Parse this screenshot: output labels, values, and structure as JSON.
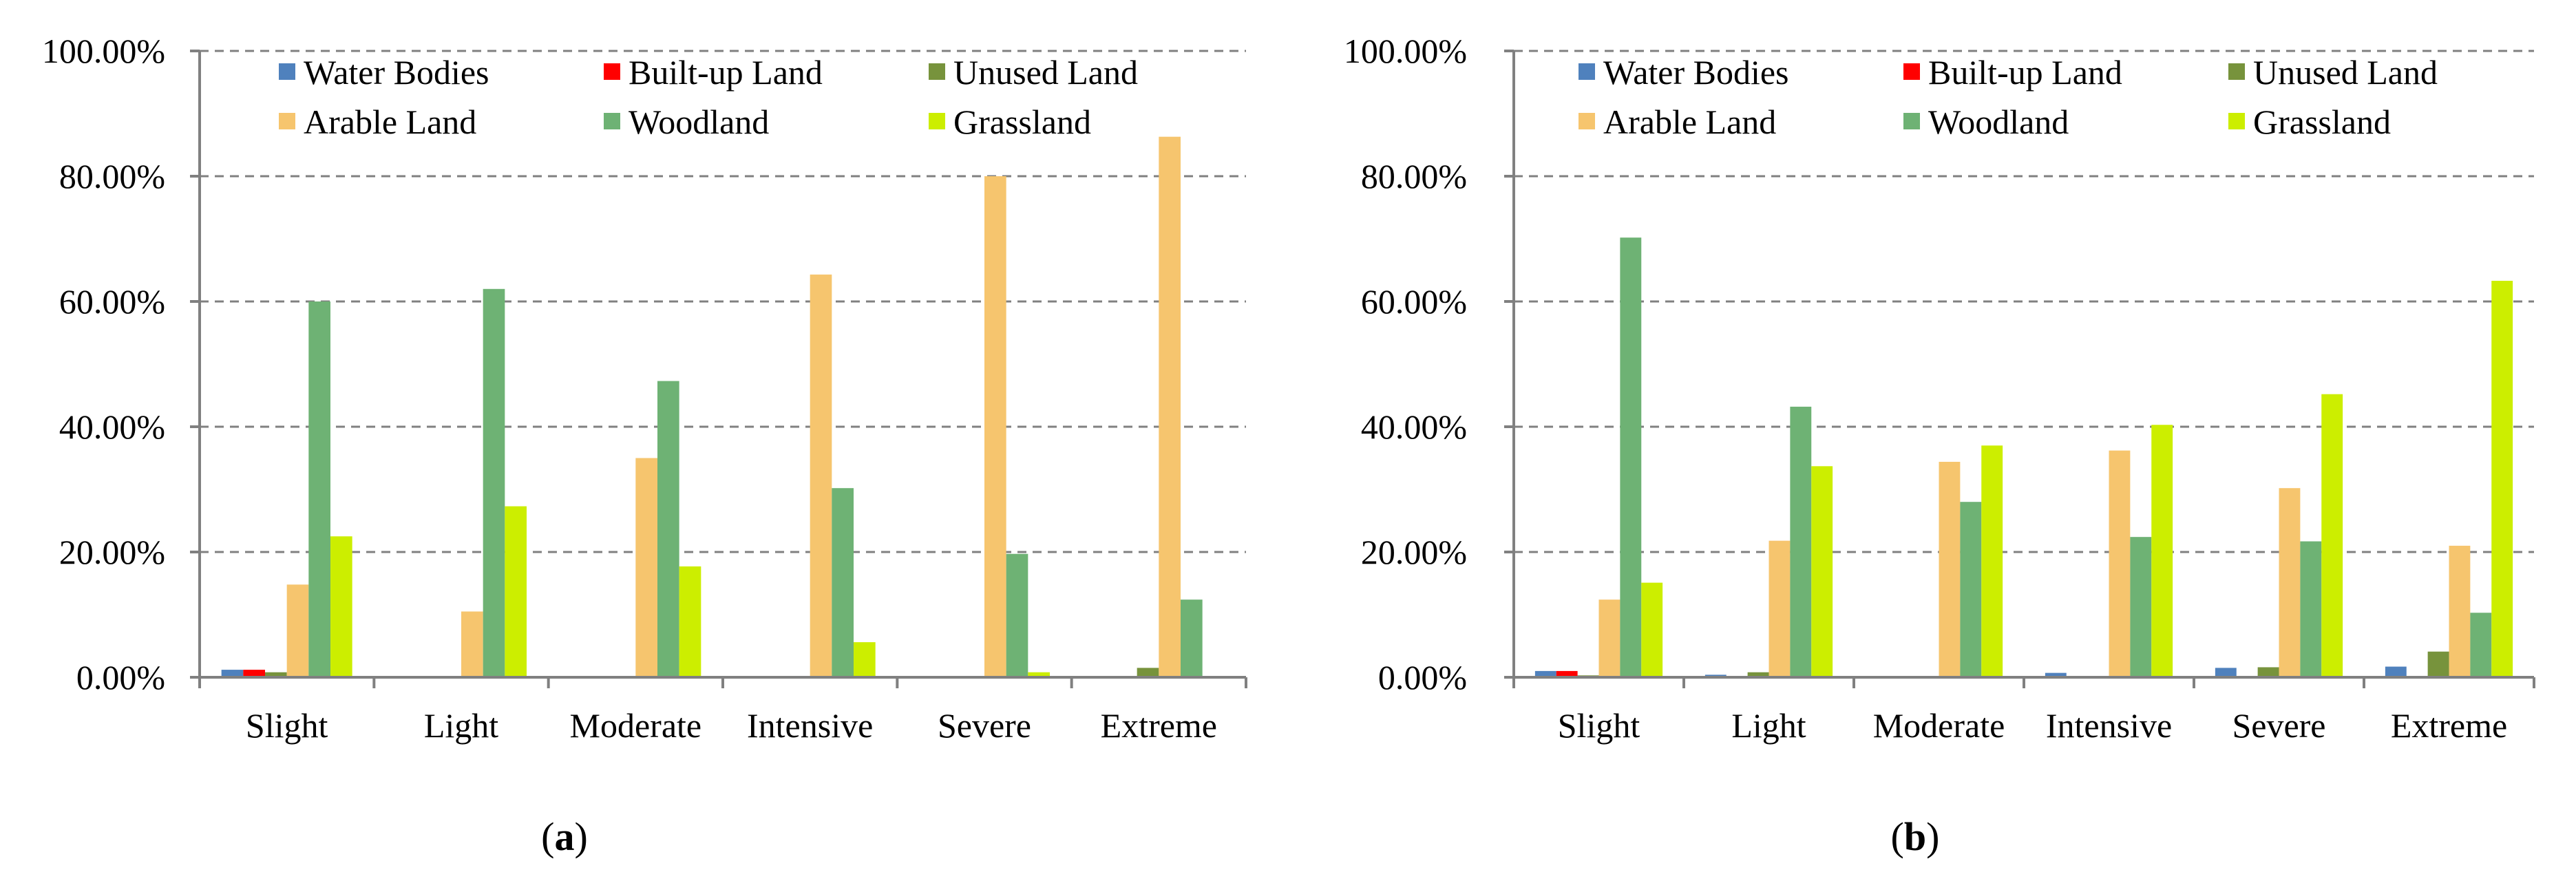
{
  "colors": {
    "Water Bodies": "#4f81bd",
    "Built-up Land": "#ff0000",
    "Unused Land": "#77933c",
    "Arable Land": "#f6c56e",
    "Woodland": "#6eb274",
    "Grassland": "#ccee00"
  },
  "chart_data": [
    {
      "type": "bar",
      "caption_pre": "(",
      "caption_letter": "a",
      "caption_post": ")",
      "categories": [
        "Slight",
        "Light",
        "Moderate",
        "Intensive",
        "Severe",
        "Extreme"
      ],
      "ylim": [
        0,
        100
      ],
      "yticks": [
        "0.00%",
        "20.00%",
        "40.00%",
        "60.00%",
        "80.00%",
        "100.00%"
      ],
      "series": [
        {
          "name": "Water Bodies",
          "values": [
            1.2,
            0,
            0,
            0,
            0,
            0
          ]
        },
        {
          "name": "Built-up Land",
          "values": [
            1.2,
            0,
            0,
            0,
            0,
            0
          ]
        },
        {
          "name": "Unused Land",
          "values": [
            0.8,
            0,
            0,
            0,
            0,
            1.5
          ]
        },
        {
          "name": "Arable Land",
          "values": [
            14.8,
            10.5,
            35.0,
            64.3,
            80.0,
            86.3
          ]
        },
        {
          "name": "Woodland",
          "values": [
            60.0,
            62.0,
            47.3,
            30.2,
            19.7,
            12.4
          ]
        },
        {
          "name": "Grassland",
          "values": [
            22.5,
            27.3,
            17.7,
            5.6,
            0.8,
            0
          ]
        }
      ]
    },
    {
      "type": "bar",
      "caption_pre": "(",
      "caption_letter": "b",
      "caption_post": ")",
      "categories": [
        "Slight",
        "Light",
        "Moderate",
        "Intensive",
        "Severe",
        "Extreme"
      ],
      "ylim": [
        0,
        100
      ],
      "yticks": [
        "0.00%",
        "20.00%",
        "40.00%",
        "60.00%",
        "80.00%",
        "100.00%"
      ],
      "series": [
        {
          "name": "Water Bodies",
          "values": [
            1.0,
            0.4,
            0,
            0.7,
            1.5,
            1.7
          ]
        },
        {
          "name": "Built-up Land",
          "values": [
            1.0,
            0,
            0,
            0,
            0,
            0
          ]
        },
        {
          "name": "Unused Land",
          "values": [
            0.3,
            0.8,
            0,
            0,
            1.6,
            4.1
          ]
        },
        {
          "name": "Arable Land",
          "values": [
            12.4,
            21.8,
            34.4,
            36.2,
            30.2,
            21.0
          ]
        },
        {
          "name": "Woodland",
          "values": [
            70.2,
            43.2,
            28.0,
            22.4,
            21.7,
            10.3
          ]
        },
        {
          "name": "Grassland",
          "values": [
            15.1,
            33.7,
            37.0,
            40.3,
            45.2,
            63.3
          ]
        }
      ]
    }
  ]
}
